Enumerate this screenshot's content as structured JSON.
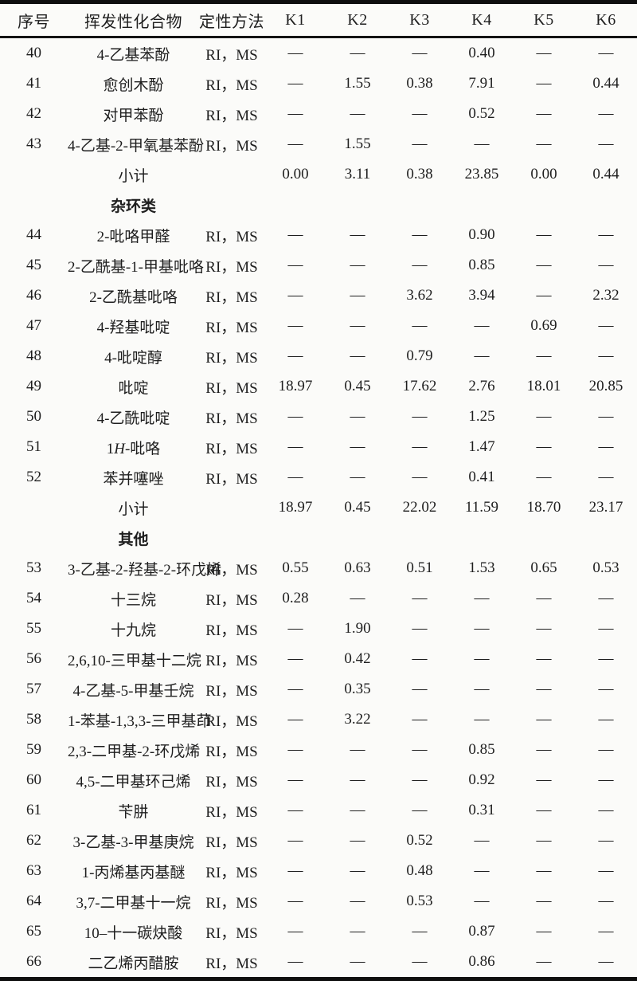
{
  "table": {
    "columns": [
      "序号",
      "挥发性化合物",
      "定性方法",
      "K1",
      "K2",
      "K3",
      "K4",
      "K5",
      "K6"
    ],
    "rows": [
      {
        "type": "data",
        "no": "40",
        "name": "4-乙基苯酚",
        "method": "RI，MS",
        "values": [
          "—",
          "—",
          "—",
          "0.40",
          "—",
          "—"
        ]
      },
      {
        "type": "data",
        "no": "41",
        "name": "愈创木酚",
        "method": "RI，MS",
        "values": [
          "—",
          "1.55",
          "0.38",
          "7.91",
          "—",
          "0.44"
        ]
      },
      {
        "type": "data",
        "no": "42",
        "name": "对甲苯酚",
        "method": "RI，MS",
        "values": [
          "—",
          "—",
          "—",
          "0.52",
          "—",
          "—"
        ]
      },
      {
        "type": "data",
        "no": "43",
        "name": "4-乙基-2-甲氧基苯酚",
        "method": "RI，MS",
        "values": [
          "—",
          "1.55",
          "—",
          "—",
          "—",
          "—"
        ]
      },
      {
        "type": "subtotal",
        "no": "",
        "name": "小计",
        "method": "",
        "values": [
          "0.00",
          "3.11",
          "0.38",
          "23.85",
          "0.00",
          "0.44"
        ]
      },
      {
        "type": "category",
        "no": "",
        "name": "杂环类",
        "method": "",
        "values": [
          "",
          "",
          "",
          "",
          "",
          ""
        ]
      },
      {
        "type": "data",
        "no": "44",
        "name": "2-吡咯甲醛",
        "method": "RI，MS",
        "values": [
          "—",
          "—",
          "—",
          "0.90",
          "—",
          "—"
        ]
      },
      {
        "type": "data",
        "no": "45",
        "name": "2-乙酰基-1-甲基吡咯",
        "method": "RI，MS",
        "values": [
          "—",
          "—",
          "—",
          "0.85",
          "—",
          "—"
        ]
      },
      {
        "type": "data",
        "no": "46",
        "name": "2-乙酰基吡咯",
        "method": "RI，MS",
        "values": [
          "—",
          "—",
          "3.62",
          "3.94",
          "—",
          "2.32"
        ]
      },
      {
        "type": "data",
        "no": "47",
        "name": "4-羟基吡啶",
        "method": "RI，MS",
        "values": [
          "—",
          "—",
          "—",
          "—",
          "0.69",
          "—"
        ]
      },
      {
        "type": "data",
        "no": "48",
        "name": "4-吡啶醇",
        "method": "RI，MS",
        "values": [
          "—",
          "—",
          "0.79",
          "—",
          "—",
          "—"
        ]
      },
      {
        "type": "data",
        "no": "49",
        "name": "吡啶",
        "method": "RI，MS",
        "values": [
          "18.97",
          "0.45",
          "17.62",
          "2.76",
          "18.01",
          "20.85"
        ]
      },
      {
        "type": "data",
        "no": "50",
        "name": "4-乙酰吡啶",
        "method": "RI，MS",
        "values": [
          "—",
          "—",
          "—",
          "1.25",
          "—",
          "—"
        ]
      },
      {
        "type": "data",
        "no": "51",
        "name": "1H-吡咯",
        "name_parts": [
          {
            "t": "1"
          },
          {
            "t": "H",
            "i": true
          },
          {
            "t": "-吡咯"
          }
        ],
        "method": "RI，MS",
        "values": [
          "—",
          "—",
          "—",
          "1.47",
          "—",
          "—"
        ]
      },
      {
        "type": "data",
        "no": "52",
        "name": "苯并噻唑",
        "method": "RI，MS",
        "values": [
          "—",
          "—",
          "—",
          "0.41",
          "—",
          "—"
        ]
      },
      {
        "type": "subtotal",
        "no": "",
        "name": "小计",
        "method": "",
        "values": [
          "18.97",
          "0.45",
          "22.02",
          "11.59",
          "18.70",
          "23.17"
        ]
      },
      {
        "type": "category",
        "no": "",
        "name": "其他",
        "method": "",
        "values": [
          "",
          "",
          "",
          "",
          "",
          ""
        ]
      },
      {
        "type": "data",
        "no": "53",
        "name": "3-乙基-2-羟基-2-环戊烯",
        "method": "RI，MS",
        "values": [
          "0.55",
          "0.63",
          "0.51",
          "1.53",
          "0.65",
          "0.53"
        ]
      },
      {
        "type": "data",
        "no": "54",
        "name": "十三烷",
        "method": "RI，MS",
        "values": [
          "0.28",
          "—",
          "—",
          "—",
          "—",
          "—"
        ]
      },
      {
        "type": "data",
        "no": "55",
        "name": "十九烷",
        "method": "RI，MS",
        "values": [
          "—",
          "1.90",
          "—",
          "—",
          "—",
          "—"
        ]
      },
      {
        "type": "data",
        "no": "56",
        "name": "2,6,10-三甲基十二烷",
        "method": "RI，MS",
        "values": [
          "—",
          "0.42",
          "—",
          "—",
          "—",
          "—"
        ]
      },
      {
        "type": "data",
        "no": "57",
        "name": "4-乙基-5-甲基壬烷",
        "method": "RI，MS",
        "values": [
          "—",
          "0.35",
          "—",
          "—",
          "—",
          "—"
        ]
      },
      {
        "type": "data",
        "no": "58",
        "name": "1-苯基-1,3,3-三甲基茚",
        "method": "RI，MS",
        "values": [
          "—",
          "3.22",
          "—",
          "—",
          "—",
          "—"
        ]
      },
      {
        "type": "data",
        "no": "59",
        "name": "2,3-二甲基-2-环戊烯",
        "method": "RI，MS",
        "values": [
          "—",
          "—",
          "—",
          "0.85",
          "—",
          "—"
        ]
      },
      {
        "type": "data",
        "no": "60",
        "name": "4,5-二甲基环己烯",
        "method": "RI，MS",
        "values": [
          "—",
          "—",
          "—",
          "0.92",
          "—",
          "—"
        ]
      },
      {
        "type": "data",
        "no": "61",
        "name": "苄肼",
        "method": "RI，MS",
        "values": [
          "—",
          "—",
          "—",
          "0.31",
          "—",
          "—"
        ]
      },
      {
        "type": "data",
        "no": "62",
        "name": "3-乙基-3-甲基庚烷",
        "method": "RI，MS",
        "values": [
          "—",
          "—",
          "0.52",
          "—",
          "—",
          "—"
        ]
      },
      {
        "type": "data",
        "no": "63",
        "name": "1-丙烯基丙基醚",
        "method": "RI，MS",
        "values": [
          "—",
          "—",
          "0.48",
          "—",
          "—",
          "—"
        ]
      },
      {
        "type": "data",
        "no": "64",
        "name": "3,7-二甲基十一烷",
        "method": "RI，MS",
        "values": [
          "—",
          "—",
          "0.53",
          "—",
          "—",
          "—"
        ]
      },
      {
        "type": "data",
        "no": "65",
        "name": "10–十一碳炔酸",
        "method": "RI，MS",
        "values": [
          "—",
          "—",
          "—",
          "0.87",
          "—",
          "—"
        ]
      },
      {
        "type": "data",
        "no": "66",
        "name": "二乙烯丙醋胺",
        "method": "RI，MS",
        "values": [
          "—",
          "—",
          "—",
          "0.86",
          "—",
          "—"
        ]
      }
    ]
  }
}
